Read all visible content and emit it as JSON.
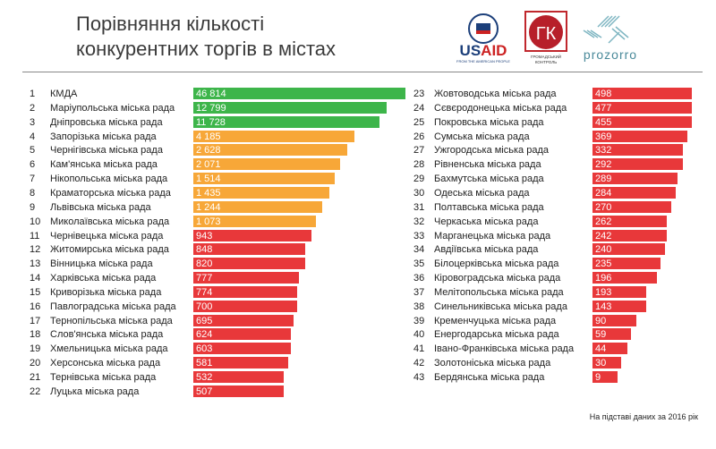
{
  "header": {
    "title_line1": "Порівняння кількості",
    "title_line2": "конкурентних торгів в містах",
    "logos": [
      "USAID FROM THE AMERICAN PEOPLE",
      "ГК ГРОМАДСЬКИЙ КОНТРОЛЬ",
      "prozorro"
    ]
  },
  "footer": "На підставі даних за 2016 рік",
  "colors": {
    "green": "#3db54a",
    "orange": "#f7a738",
    "red": "#e8383a"
  },
  "chart_data": {
    "type": "bar",
    "orientation": "horizontal",
    "title": "Порівняння кількості конкурентних торгів в містах",
    "categories": [
      "КМДА",
      "Маріупольська міська рада",
      "Дніпровська міська рада",
      "Запорізька міська рада",
      "Чернігівська міська рада",
      "Кам'янська міська рада",
      "Нікопольська міська рада",
      "Краматорська міська рада",
      "Львівська міська рада",
      "Миколаївська міська рада",
      "Чернівецька міська рада",
      "Житомирська міська рада",
      "Вінницька міська рада",
      "Харківська міська рада",
      "Криворізька міська рада",
      "Павлоградська міська рада",
      "Тернопільська міська рада",
      "Слов'янська міська рада",
      "Хмельницька міська рада",
      "Херсонська міська рада",
      "Тернівська міська рада",
      "Луцька міська рада",
      "Жовтоводська міська рада",
      "Сєвєродонецька міська рада",
      "Покровська міська рада",
      "Сумська міська рада",
      "Ужгородська міська рада",
      "Рівненська міська рада",
      "Бахмутська міська рада",
      "Одеська міська рада",
      "Полтавська міська рада",
      "Черкаська міська рада",
      "Марганецька міська рада",
      "Авдіївська міська рада",
      "Білоцерківська міська рада",
      "Кіровоградська міська рада",
      "Мелітопольська міська рада",
      "Синельниківська міська рада",
      "Кременчуцька міська рада",
      "Енергодарська міська рада",
      "Івано-Франківська міська рада",
      "Золотоніська міська рада",
      "Бердянська міська рада"
    ],
    "values": [
      46814,
      12799,
      11728,
      4185,
      2628,
      2071,
      1514,
      1435,
      1244,
      1073,
      943,
      848,
      820,
      777,
      774,
      700,
      695,
      624,
      603,
      581,
      532,
      507,
      498,
      477,
      455,
      369,
      332,
      292,
      289,
      284,
      270,
      262,
      242,
      240,
      235,
      196,
      193,
      143,
      90,
      59,
      44,
      30,
      9
    ],
    "labels": [
      "46 814",
      "12 799",
      "11 728",
      "4 185",
      "2 628",
      "2 071",
      "1 514",
      "1 435",
      "1 244",
      "1 073",
      "943",
      "848",
      "820",
      "777",
      "774",
      "700",
      "695",
      "624",
      "603",
      "581",
      "532",
      "507",
      "498",
      "477",
      "455",
      "369",
      "332",
      "292",
      "289",
      "284",
      "270",
      "262",
      "242",
      "240",
      "235",
      "196",
      "193",
      "143",
      "90",
      "59",
      "44",
      "30",
      "9"
    ],
    "color_groups": {
      "green": [
        1,
        3
      ],
      "orange": [
        4,
        10
      ],
      "red": [
        11,
        43
      ]
    }
  }
}
